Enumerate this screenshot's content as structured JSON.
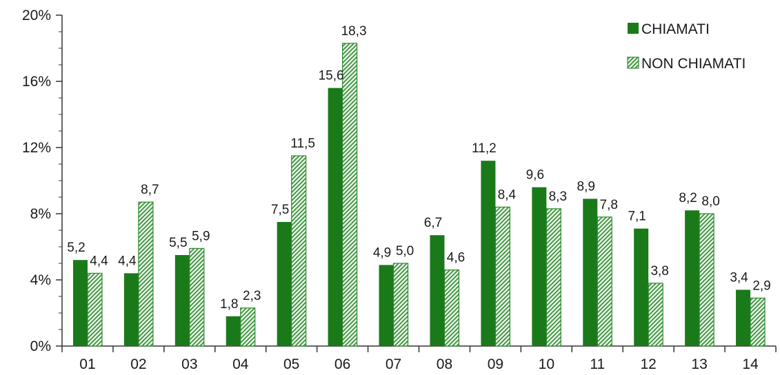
{
  "chart_data": {
    "type": "bar",
    "categories": [
      "01",
      "02",
      "03",
      "04",
      "05",
      "06",
      "07",
      "08",
      "09",
      "10",
      "11",
      "12",
      "13",
      "14"
    ],
    "series": [
      {
        "name": "CHIAMATI",
        "values": [
          5.2,
          4.4,
          5.5,
          1.8,
          7.5,
          15.6,
          4.9,
          6.7,
          11.2,
          9.6,
          8.9,
          7.1,
          8.2,
          3.4
        ],
        "labels": [
          "5,2",
          "4,4",
          "5,5",
          "1,8",
          "7,5",
          "15,6",
          "4,9",
          "6,7",
          "11,2",
          "9,6",
          "8,9",
          "7,1",
          "8,2",
          "3,4"
        ],
        "color": "#1a7a1a",
        "fill": "solid"
      },
      {
        "name": "NON CHIAMATI",
        "values": [
          4.4,
          8.7,
          5.9,
          2.3,
          11.5,
          18.3,
          5.0,
          4.6,
          8.4,
          8.3,
          7.8,
          3.8,
          8.0,
          2.9
        ],
        "labels": [
          "4,4",
          "8,7",
          "5,9",
          "2,3",
          "11,5",
          "18,3",
          "5,0",
          "4,6",
          "8,4",
          "8,3",
          "7,8",
          "3,8",
          "8,0",
          "2,9"
        ],
        "color": "#2e8b2e",
        "fill": "hatched"
      }
    ],
    "yticks": [
      0,
      4,
      8,
      12,
      16,
      20
    ],
    "ytick_labels": [
      "0%",
      "4%",
      "8%",
      "12%",
      "16%",
      "20%"
    ],
    "ylim": [
      0,
      20
    ],
    "minor_ytick_step": 1,
    "grid": false,
    "legend_position": "top-right",
    "title": "",
    "xlabel": "",
    "ylabel": ""
  }
}
